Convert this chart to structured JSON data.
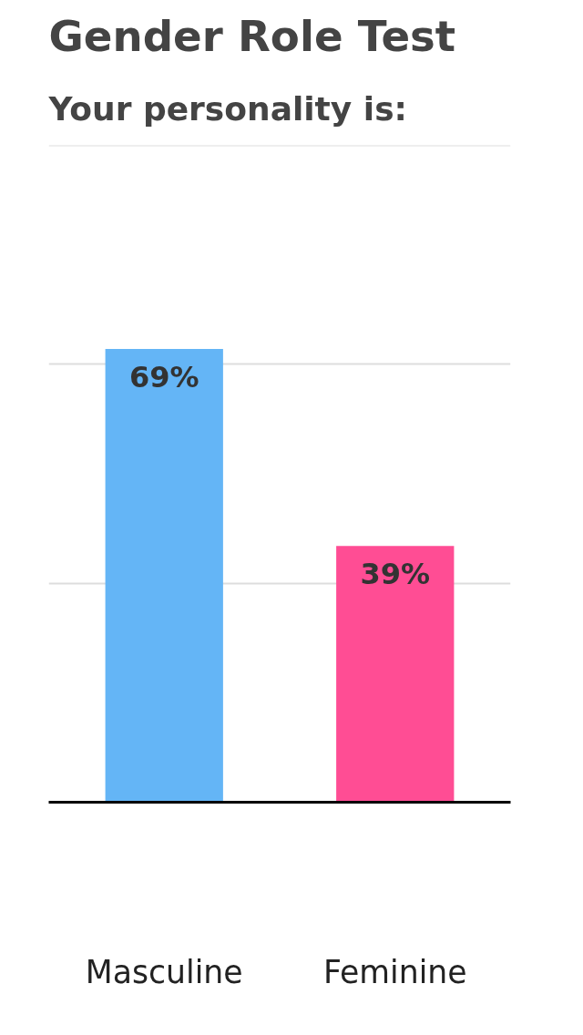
{
  "chart_data": {
    "type": "bar",
    "title": "Gender Role Test",
    "subtitle": "Your personality is:",
    "categories": [
      "Masculine",
      "Feminine"
    ],
    "values": [
      69,
      39
    ],
    "colors": [
      "#64b5f6",
      "#ff4d94"
    ],
    "value_labels": [
      "69%",
      "39%"
    ],
    "ylim": [
      0,
      100
    ],
    "yticks": [
      {
        "value": 0,
        "label": null
      },
      {
        "value": 33.3,
        "label": null
      },
      {
        "value": 66.7,
        "label": null
      },
      {
        "value": 100,
        "label": null
      }
    ],
    "grid": "y",
    "tick_labels": "x"
  }
}
